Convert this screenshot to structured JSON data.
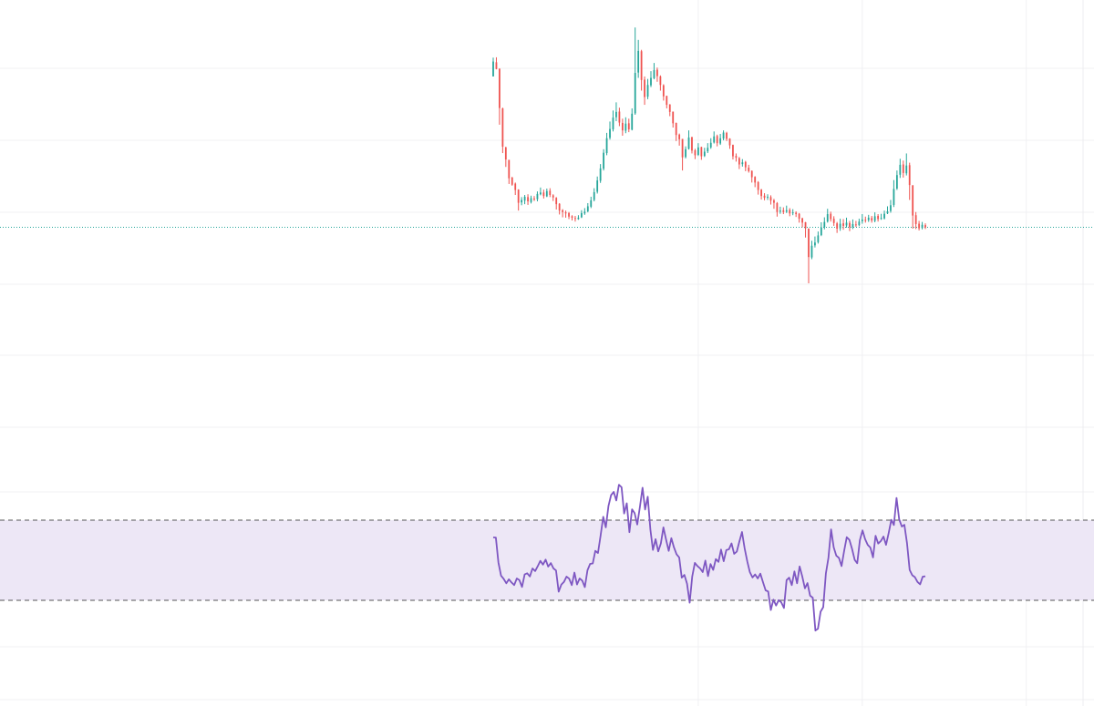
{
  "chart_data": [
    {
      "type": "candlestick",
      "title": "",
      "grid": true,
      "colors": {
        "up": "#26a69a",
        "down": "#ef5350",
        "last_price_line": "#26a69a"
      },
      "y_scale": "unitless",
      "ylim": [
        0,
        100
      ],
      "last_price": 42.5,
      "x_gridlines": [
        66,
        118,
        170
      ],
      "x_range": [
        1,
        183
      ],
      "candles": [
        [
          85.0,
          89.2,
          90.3,
          88.5
        ],
        [
          89.0,
          87.1,
          90.4,
          87.0
        ],
        [
          87.2,
          76.1,
          87.2,
          71.4
        ],
        [
          76.0,
          65.2,
          76.2,
          63.4
        ],
        [
          65.0,
          61.6,
          65.2,
          59.5
        ],
        [
          61.5,
          56.3,
          61.5,
          54.7
        ],
        [
          56.5,
          54.5,
          56.7,
          54.2
        ],
        [
          54.8,
          53.0,
          55.1,
          51.6
        ],
        [
          53.1,
          49.4,
          53.2,
          47.2
        ],
        [
          49.5,
          50.2,
          51.0,
          48.7
        ],
        [
          50.0,
          51.1,
          51.6,
          49.0
        ],
        [
          51.0,
          49.8,
          51.8,
          48.8
        ],
        [
          49.6,
          50.7,
          51.4,
          49.2
        ],
        [
          50.6,
          50.3,
          51.3,
          49.9
        ],
        [
          50.4,
          51.9,
          52.6,
          49.8
        ],
        [
          51.8,
          52.3,
          53.7,
          51.5
        ],
        [
          52.3,
          51.3,
          53.1,
          50.6
        ],
        [
          51.2,
          52.7,
          53.4,
          51.0
        ],
        [
          52.8,
          51.6,
          53.5,
          51.0
        ],
        [
          51.5,
          50.9,
          51.8,
          49.9
        ],
        [
          50.8,
          49.0,
          51.0,
          47.5
        ],
        [
          49.1,
          47.2,
          49.3,
          46.1
        ],
        [
          47.3,
          46.8,
          47.6,
          45.3
        ],
        [
          46.7,
          46.4,
          47.2,
          45.2
        ],
        [
          46.5,
          45.5,
          46.8,
          44.8
        ],
        [
          45.6,
          45.2,
          45.9,
          44.4
        ],
        [
          45.1,
          44.9,
          45.7,
          44.1
        ],
        [
          44.8,
          45.2,
          45.9,
          44.6
        ],
        [
          45.3,
          46.5,
          47.3,
          45.1
        ],
        [
          46.4,
          46.9,
          47.9,
          46.0
        ],
        [
          47.0,
          48.4,
          49.3,
          46.7
        ],
        [
          48.3,
          50.1,
          51.1,
          47.9
        ],
        [
          50.2,
          52.4,
          53.5,
          49.8
        ],
        [
          52.5,
          55.7,
          56.8,
          52.0
        ],
        [
          55.6,
          59.1,
          60.3,
          55.0
        ],
        [
          59.0,
          63.5,
          64.5,
          58.5
        ],
        [
          63.4,
          67.6,
          69.1,
          62.8
        ],
        [
          67.7,
          70.2,
          72.3,
          67.2
        ],
        [
          70.1,
          73.4,
          75.4,
          69.5
        ],
        [
          73.5,
          75.0,
          77.7,
          72.4
        ],
        [
          75.1,
          72.0,
          76.2,
          71.0
        ],
        [
          71.9,
          69.8,
          73.1,
          68.3
        ],
        [
          69.7,
          71.7,
          73.5,
          69.0
        ],
        [
          71.8,
          70.1,
          73.1,
          69.3
        ],
        [
          70.0,
          74.5,
          76.0,
          69.8
        ],
        [
          74.6,
          86.0,
          98.8,
          74.2
        ],
        [
          86.1,
          92.2,
          95.3,
          84.6
        ],
        [
          92.1,
          84.0,
          92.5,
          81.0
        ],
        [
          84.1,
          79.2,
          85.0,
          77.0
        ],
        [
          79.3,
          82.6,
          84.3,
          78.6
        ],
        [
          82.5,
          84.6,
          86.5,
          82.0
        ],
        [
          84.5,
          86.8,
          88.8,
          84.2
        ],
        [
          86.9,
          85.1,
          87.5,
          83.5
        ],
        [
          85.0,
          82.6,
          85.3,
          81.0
        ],
        [
          82.5,
          79.4,
          82.8,
          78.2
        ],
        [
          79.5,
          77.0,
          79.6,
          76.0
        ],
        [
          77.1,
          75.0,
          77.2,
          73.8
        ],
        [
          75.1,
          71.8,
          75.1,
          70.6
        ],
        [
          71.9,
          68.5,
          72.0,
          66.8
        ],
        [
          68.6,
          67.3,
          68.9,
          65.5
        ],
        [
          67.4,
          62.2,
          67.4,
          58.5
        ],
        [
          62.3,
          64.5,
          65.3,
          61.9
        ],
        [
          64.6,
          67.8,
          69.8,
          64.4
        ],
        [
          67.9,
          64.1,
          68.0,
          63.3
        ],
        [
          64.2,
          62.8,
          64.6,
          61.7
        ],
        [
          62.9,
          65.0,
          66.2,
          62.6
        ],
        [
          65.1,
          62.5,
          65.2,
          61.5
        ],
        [
          62.6,
          63.8,
          64.9,
          62.3
        ],
        [
          63.9,
          64.9,
          66.2,
          63.4
        ],
        [
          65.0,
          66.3,
          67.6,
          64.6
        ],
        [
          66.4,
          68.1,
          69.5,
          66.1
        ],
        [
          68.2,
          66.2,
          68.6,
          65.3
        ],
        [
          66.1,
          67.6,
          68.8,
          65.7
        ],
        [
          67.5,
          69.2,
          69.8,
          67.0
        ],
        [
          69.1,
          67.4,
          69.4,
          66.8
        ],
        [
          67.5,
          65.6,
          67.6,
          64.6
        ],
        [
          65.7,
          62.5,
          65.8,
          61.6
        ],
        [
          62.6,
          62.1,
          63.3,
          61.0
        ],
        [
          62.0,
          60.2,
          62.3,
          58.9
        ],
        [
          60.3,
          60.8,
          61.7,
          59.6
        ],
        [
          60.9,
          59.4,
          61.2,
          58.3
        ],
        [
          59.3,
          58.3,
          60.1,
          57.9
        ],
        [
          58.4,
          56.6,
          58.5,
          55.1
        ],
        [
          56.7,
          55.1,
          56.9,
          53.8
        ],
        [
          55.2,
          53.0,
          55.5,
          51.7
        ],
        [
          53.1,
          51.3,
          53.3,
          50.3
        ],
        [
          51.4,
          50.8,
          52.1,
          50.1
        ],
        [
          50.9,
          51.1,
          51.8,
          50.2
        ],
        [
          51.0,
          50.0,
          51.5,
          48.9
        ],
        [
          50.1,
          49.4,
          50.5,
          47.7
        ],
        [
          49.3,
          46.8,
          49.6,
          45.5
        ],
        [
          46.9,
          47.2,
          48.3,
          46.3
        ],
        [
          47.3,
          46.8,
          48.1,
          46.2
        ],
        [
          46.9,
          47.3,
          48.6,
          46.5
        ],
        [
          47.4,
          46.4,
          47.9,
          45.6
        ],
        [
          46.5,
          46.7,
          47.6,
          45.9
        ],
        [
          46.6,
          46.2,
          47.0,
          45.4
        ],
        [
          46.3,
          44.9,
          46.5,
          43.8
        ],
        [
          45.0,
          43.8,
          45.2,
          42.5
        ],
        [
          43.9,
          42.2,
          44.0,
          39.6
        ],
        [
          42.1,
          34.1,
          42.2,
          26.7
        ],
        [
          34.0,
          37.3,
          38.7,
          33.5
        ],
        [
          37.4,
          38.2,
          39.9,
          36.8
        ],
        [
          38.3,
          40.2,
          41.3,
          37.9
        ],
        [
          40.3,
          42.4,
          43.9,
          40.0
        ],
        [
          42.5,
          44.0,
          45.3,
          41.9
        ],
        [
          44.1,
          46.2,
          47.7,
          43.8
        ],
        [
          46.3,
          44.8,
          46.9,
          44.1
        ],
        [
          44.9,
          43.7,
          45.6,
          42.9
        ],
        [
          43.6,
          42.1,
          44.0,
          40.9
        ],
        [
          42.2,
          43.5,
          44.9,
          41.5
        ],
        [
          43.6,
          42.9,
          44.8,
          41.8
        ],
        [
          43.0,
          43.8,
          45.2,
          42.4
        ],
        [
          43.7,
          42.5,
          44.3,
          41.4
        ],
        [
          42.6,
          43.4,
          44.7,
          42.0
        ],
        [
          43.3,
          43.2,
          44.3,
          42.6
        ],
        [
          43.1,
          44.1,
          44.9,
          42.8
        ],
        [
          44.2,
          44.7,
          46.2,
          43.5
        ],
        [
          44.6,
          44.5,
          45.5,
          43.8
        ],
        [
          44.5,
          45.2,
          46.0,
          44.0
        ],
        [
          45.1,
          44.4,
          45.7,
          43.8
        ],
        [
          44.3,
          45.6,
          46.7,
          43.9
        ],
        [
          45.7,
          44.8,
          46.2,
          44.1
        ],
        [
          44.9,
          45.1,
          46.3,
          44.6
        ],
        [
          45.0,
          46.3,
          47.2,
          44.7
        ],
        [
          46.4,
          47.0,
          48.4,
          46.2
        ],
        [
          47.1,
          48.7,
          50.2,
          46.6
        ],
        [
          48.8,
          53.3,
          55.8,
          48.2
        ],
        [
          53.4,
          57.2,
          58.5,
          53.0
        ],
        [
          57.3,
          60.1,
          61.8,
          56.4
        ],
        [
          60.2,
          57.8,
          61.3,
          56.5
        ],
        [
          57.7,
          59.9,
          63.3,
          57.1
        ],
        [
          60.0,
          54.4,
          60.7,
          50.2
        ],
        [
          54.3,
          45.8,
          54.4,
          42.1
        ],
        [
          45.9,
          43.4,
          46.8,
          42.0
        ],
        [
          43.5,
          42.2,
          44.3,
          41.6
        ],
        [
          42.3,
          43.2,
          44.0,
          41.9
        ],
        [
          43.1,
          42.5,
          43.6,
          42.0
        ]
      ]
    },
    {
      "type": "line",
      "title": "",
      "series": [
        {
          "color": "#7e57c2"
        }
      ],
      "band": {
        "upper": 70,
        "lower": 30,
        "fill": "#ede7f6",
        "line_color": "#555555"
      },
      "ylim": [
        0,
        100
      ],
      "x_range": [
        1,
        183
      ],
      "values": [
        61.4,
        61.3,
        48.9,
        42.3,
        40.7,
        38.5,
        40.5,
        38.9,
        37.6,
        40.9,
        40.1,
        36.7,
        42.9,
        43.5,
        41.9,
        45.9,
        44.6,
        47.0,
        49.7,
        47.8,
        50.3,
        46.8,
        48.6,
        45.9,
        44.9,
        34.3,
        37.8,
        39.2,
        41.8,
        40.8,
        37.6,
        43.8,
        37.9,
        40.9,
        39.8,
        36.6,
        45.0,
        48.2,
        48.4,
        54.7,
        53.6,
        62.3,
        71.7,
        66.4,
        77.0,
        82.5,
        84.1,
        79.8,
        87.7,
        86.4,
        73.3,
        78.4,
        64.0,
        75.4,
        73.5,
        67.8,
        76.6,
        86.2,
        75.3,
        81.7,
        65.3,
        55.2,
        60.5,
        54.4,
        58.4,
        66.4,
        60.3,
        54.7,
        61.0,
        56.5,
        53.0,
        51.4,
        41.3,
        42.7,
        38.3,
        28.8,
        41.9,
        48.7,
        47.1,
        45.9,
        44.1,
        49.8,
        42.1,
        48.1,
        45.2,
        50.6,
        49.2,
        55.3,
        49.5,
        55.1,
        55.5,
        58.4,
        53.2,
        54.3,
        59.3,
        64.1,
        55.9,
        49.4,
        44.1,
        41.4,
        42.9,
        40.9,
        43.3,
        39.1,
        35.0,
        34.4,
        25.2,
        30.3,
        27.4,
        30.1,
        29.0,
        26.2,
        40.1,
        41.3,
        37.6,
        44.4,
        38.5,
        46.9,
        41.9,
        36.0,
        38.6,
        32.3,
        31.3,
        14.9,
        15.8,
        24.3,
        26.6,
        43.4,
        51.2,
        65.4,
        56.4,
        52.3,
        51.2,
        47.1,
        54.8,
        61.5,
        60.2,
        55.7,
        50.2,
        48.5,
        60.0,
        64.9,
        60.6,
        57.7,
        56.3,
        51.4,
        62.2,
        58.3,
        59.6,
        61.8,
        57.7,
        63.6,
        70.2,
        67.6,
        81.1,
        70.4,
        66.8,
        67.7,
        58.5,
        45.2,
        42.5,
        41.6,
        39.2,
        38.0,
        41.8,
        42.0
      ]
    }
  ]
}
